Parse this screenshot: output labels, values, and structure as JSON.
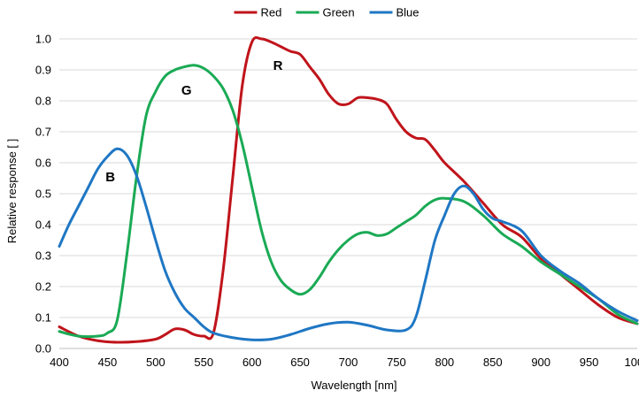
{
  "chart_data": {
    "type": "line",
    "title": "",
    "xlabel": "Wavelength [nm]",
    "ylabel": "Relative response [ ]",
    "xlim": [
      400,
      1000
    ],
    "ylim": [
      0.0,
      1.0
    ],
    "x_ticks": [
      "400",
      "450",
      "500",
      "550",
      "600",
      "650",
      "700",
      "750",
      "800",
      "850",
      "900",
      "950",
      "1000"
    ],
    "y_ticks": [
      "0.0",
      "0.1",
      "0.2",
      "0.3",
      "0.4",
      "0.5",
      "0.6",
      "0.7",
      "0.8",
      "0.9",
      "1.0"
    ],
    "grid": "horizontal",
    "legend_position": "top-center",
    "annotations": [
      {
        "text": "R",
        "x": 627,
        "y": 0.915
      },
      {
        "text": "G",
        "x": 532,
        "y": 0.835
      },
      {
        "text": "B",
        "x": 453,
        "y": 0.555
      }
    ],
    "series": [
      {
        "name": "Red",
        "color": "#c0141b",
        "x": [
          400,
          420,
          440,
          460,
          480,
          500,
          510,
          520,
          530,
          540,
          550,
          560,
          570,
          580,
          590,
          600,
          610,
          620,
          630,
          640,
          650,
          660,
          670,
          680,
          690,
          700,
          710,
          720,
          730,
          740,
          750,
          760,
          770,
          780,
          790,
          800,
          820,
          840,
          860,
          880,
          900,
          920,
          940,
          960,
          980,
          1000
        ],
        "values": [
          0.07,
          0.04,
          0.025,
          0.02,
          0.022,
          0.03,
          0.045,
          0.063,
          0.06,
          0.045,
          0.04,
          0.05,
          0.25,
          0.55,
          0.85,
          0.99,
          1.0,
          0.99,
          0.975,
          0.96,
          0.95,
          0.91,
          0.87,
          0.82,
          0.79,
          0.79,
          0.81,
          0.81,
          0.805,
          0.79,
          0.74,
          0.7,
          0.68,
          0.675,
          0.64,
          0.6,
          0.54,
          0.47,
          0.4,
          0.36,
          0.29,
          0.24,
          0.19,
          0.14,
          0.1,
          0.08
        ]
      },
      {
        "name": "Green",
        "color": "#1aaa55",
        "x": [
          400,
          420,
          440,
          450,
          460,
          470,
          480,
          490,
          500,
          510,
          520,
          530,
          540,
          550,
          560,
          570,
          580,
          590,
          600,
          610,
          620,
          630,
          640,
          650,
          660,
          670,
          680,
          690,
          700,
          710,
          720,
          730,
          740,
          750,
          760,
          770,
          780,
          790,
          800,
          820,
          840,
          860,
          880,
          900,
          920,
          940,
          960,
          980,
          1000
        ],
        "values": [
          0.055,
          0.04,
          0.04,
          0.05,
          0.09,
          0.3,
          0.55,
          0.75,
          0.83,
          0.88,
          0.9,
          0.91,
          0.915,
          0.905,
          0.88,
          0.84,
          0.77,
          0.66,
          0.52,
          0.38,
          0.28,
          0.22,
          0.19,
          0.175,
          0.19,
          0.23,
          0.28,
          0.32,
          0.35,
          0.37,
          0.375,
          0.365,
          0.37,
          0.39,
          0.41,
          0.43,
          0.46,
          0.48,
          0.485,
          0.475,
          0.43,
          0.37,
          0.33,
          0.28,
          0.24,
          0.2,
          0.16,
          0.11,
          0.08
        ]
      },
      {
        "name": "Blue",
        "color": "#1f77c4",
        "x": [
          400,
          410,
          420,
          430,
          440,
          450,
          460,
          470,
          480,
          490,
          500,
          510,
          520,
          530,
          540,
          550,
          560,
          580,
          600,
          620,
          640,
          660,
          680,
          700,
          720,
          740,
          760,
          770,
          780,
          790,
          800,
          810,
          820,
          830,
          840,
          850,
          860,
          880,
          900,
          920,
          940,
          960,
          980,
          1000
        ],
        "values": [
          0.33,
          0.4,
          0.46,
          0.52,
          0.58,
          0.62,
          0.645,
          0.625,
          0.56,
          0.46,
          0.35,
          0.25,
          0.18,
          0.13,
          0.1,
          0.07,
          0.05,
          0.035,
          0.028,
          0.03,
          0.045,
          0.065,
          0.08,
          0.085,
          0.075,
          0.06,
          0.06,
          0.1,
          0.22,
          0.35,
          0.43,
          0.5,
          0.525,
          0.5,
          0.45,
          0.42,
          0.41,
          0.38,
          0.3,
          0.25,
          0.21,
          0.16,
          0.12,
          0.09
        ]
      }
    ]
  }
}
